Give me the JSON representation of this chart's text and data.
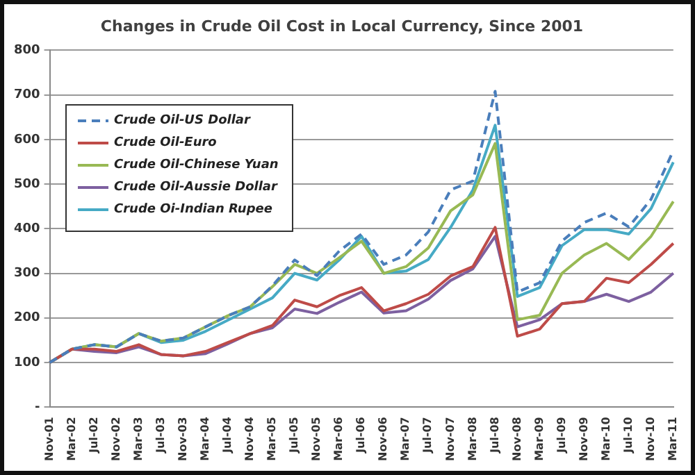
{
  "chart_data": {
    "type": "line",
    "title": "Changes in Crude Oil Cost in Local Currency, Since 2001",
    "categories": [
      "Nov-01",
      "Mar-02",
      "Jul-02",
      "Nov-02",
      "Mar-03",
      "Jul-03",
      "Nov-03",
      "Mar-04",
      "Jul-04",
      "Nov-04",
      "Mar-05",
      "Jul-05",
      "Nov-05",
      "Mar-06",
      "Jul-06",
      "Nov-06",
      "Mar-07",
      "Jul-07",
      "Nov-07",
      "Mar-08",
      "Jul-08",
      "Nov-08",
      "Mar-09",
      "Jul-09",
      "Nov-09",
      "Mar-10",
      "Jul-10",
      "Nov-10",
      "Mar-11"
    ],
    "series": [
      {
        "name": "Crude Oil-US Dollar",
        "color": "#4a7ebb",
        "line_style": "dashed",
        "values": [
          100,
          130,
          140,
          135,
          165,
          148,
          155,
          180,
          205,
          225,
          272,
          330,
          295,
          350,
          388,
          320,
          341,
          393,
          487,
          507,
          708,
          258,
          279,
          372,
          414,
          435,
          404,
          466,
          575
        ]
      },
      {
        "name": "Crude Oil-Euro",
        "color": "#be4b48",
        "values": [
          100,
          130,
          130,
          125,
          140,
          118,
          115,
          125,
          145,
          165,
          183,
          240,
          225,
          250,
          268,
          216,
          232,
          253,
          294,
          315,
          403,
          159,
          175,
          232,
          237,
          289,
          279,
          320,
          367
        ]
      },
      {
        "name": "Crude Oil-Chinese Yuan",
        "color": "#98b954",
        "values": [
          100,
          130,
          140,
          135,
          165,
          148,
          155,
          180,
          205,
          225,
          270,
          320,
          300,
          335,
          372,
          300,
          315,
          357,
          440,
          476,
          591,
          196,
          206,
          300,
          341,
          367,
          331,
          383,
          461
        ]
      },
      {
        "name": "Crude Oil-Aussie Dollar",
        "color": "#7d60a0",
        "values": [
          100,
          130,
          125,
          122,
          135,
          118,
          115,
          120,
          142,
          165,
          178,
          220,
          210,
          235,
          258,
          211,
          216,
          242,
          284,
          310,
          383,
          180,
          196,
          232,
          237,
          253,
          237,
          258,
          300
        ]
      },
      {
        "name": "Crude Oi-Indian Rupee",
        "color": "#46aac5",
        "values": [
          100,
          130,
          140,
          135,
          165,
          145,
          150,
          170,
          195,
          220,
          245,
          300,
          285,
          330,
          383,
          300,
          305,
          331,
          403,
          487,
          632,
          248,
          268,
          362,
          398,
          398,
          388,
          445,
          549
        ]
      }
    ],
    "ylim": [
      0,
      800
    ],
    "yticks": [
      {
        "value": 0,
        "label": "-"
      },
      100,
      200,
      300,
      400,
      500,
      600,
      700,
      800
    ],
    "grid": "y",
    "legend": "top left",
    "marker": "none"
  }
}
